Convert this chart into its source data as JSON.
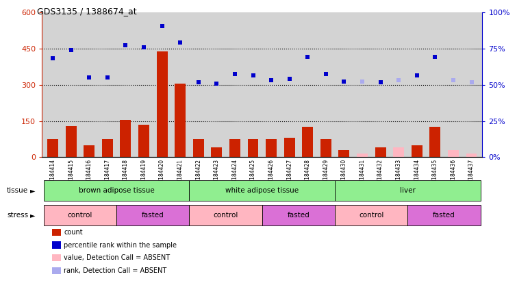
{
  "title": "GDS3135 / 1388674_at",
  "samples": [
    "GSM184414",
    "GSM184415",
    "GSM184416",
    "GSM184417",
    "GSM184418",
    "GSM184419",
    "GSM184420",
    "GSM184421",
    "GSM184422",
    "GSM184423",
    "GSM184424",
    "GSM184425",
    "GSM184426",
    "GSM184427",
    "GSM184428",
    "GSM184429",
    "GSM184430",
    "GSM184431",
    "GSM184432",
    "GSM184433",
    "GSM184434",
    "GSM184435",
    "GSM184436",
    "GSM184437"
  ],
  "count_values": [
    75,
    130,
    50,
    75,
    155,
    135,
    440,
    305,
    75,
    40,
    75,
    75,
    75,
    80,
    125,
    75,
    30,
    15,
    40,
    40,
    50,
    125,
    30,
    15
  ],
  "count_absent": [
    false,
    false,
    false,
    false,
    false,
    false,
    false,
    false,
    false,
    false,
    false,
    false,
    false,
    false,
    false,
    false,
    false,
    true,
    false,
    true,
    false,
    false,
    true,
    true
  ],
  "rank_values": [
    410,
    445,
    330,
    330,
    465,
    455,
    545,
    475,
    310,
    305,
    345,
    340,
    320,
    325,
    415,
    345,
    315,
    315,
    310,
    320,
    340,
    415,
    320,
    310
  ],
  "rank_absent": [
    false,
    false,
    false,
    false,
    false,
    false,
    false,
    false,
    false,
    false,
    false,
    false,
    false,
    false,
    false,
    false,
    false,
    true,
    false,
    true,
    false,
    false,
    true,
    true
  ],
  "tissue_groups": [
    {
      "label": "brown adipose tissue",
      "start": 0,
      "end": 7
    },
    {
      "label": "white adipose tissue",
      "start": 8,
      "end": 15
    },
    {
      "label": "liver",
      "start": 16,
      "end": 23
    }
  ],
  "stress_groups": [
    {
      "label": "control",
      "start": 0,
      "end": 3,
      "color": "#FFB6C1"
    },
    {
      "label": "fasted",
      "start": 4,
      "end": 7,
      "color": "#DA70D6"
    },
    {
      "label": "control",
      "start": 8,
      "end": 11,
      "color": "#FFB6C1"
    },
    {
      "label": "fasted",
      "start": 12,
      "end": 15,
      "color": "#DA70D6"
    },
    {
      "label": "control",
      "start": 16,
      "end": 19,
      "color": "#FFB6C1"
    },
    {
      "label": "fasted",
      "start": 20,
      "end": 23,
      "color": "#DA70D6"
    }
  ],
  "ylim_left": [
    0,
    600
  ],
  "ylim_right": [
    0,
    100
  ],
  "yticks_left": [
    0,
    150,
    300,
    450,
    600
  ],
  "yticks_right": [
    0,
    25,
    50,
    75,
    100
  ],
  "bar_color_present": "#CC2200",
  "bar_color_absent": "#FFB6C1",
  "dot_color_present": "#0000CC",
  "dot_color_absent": "#AAAAEE",
  "bg_color": "#D3D3D3",
  "tissue_color": "#90EE90",
  "legend_items": [
    {
      "color": "#CC2200",
      "label": "count"
    },
    {
      "color": "#0000CC",
      "label": "percentile rank within the sample"
    },
    {
      "color": "#FFB6C1",
      "label": "value, Detection Call = ABSENT"
    },
    {
      "color": "#AAAAEE",
      "label": "rank, Detection Call = ABSENT"
    }
  ]
}
